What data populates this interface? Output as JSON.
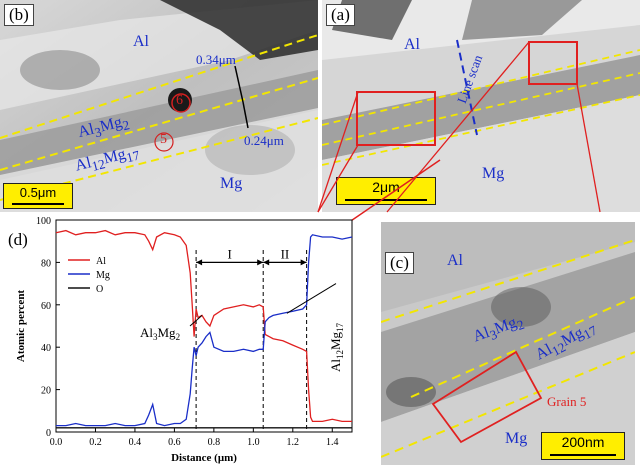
{
  "panel_b": {
    "label": "(b)",
    "phase_al": "Al",
    "phase_al3mg2_main": "Al",
    "phase_al3mg2_sub1": "3",
    "phase_al3mg2_mid": "Mg",
    "phase_al3mg2_sub2": "2",
    "phase_al12mg17_main": "Al",
    "phase_al12mg17_sub1": "12",
    "phase_al12mg17_mid": "Mg",
    "phase_al12mg17_sub2": "17",
    "phase_mg": "Mg",
    "measure_top": "0.34μm",
    "measure_bottom": "0.24μm",
    "grain_6": "6",
    "grain_5": "5",
    "scale": "0.5μm",
    "colors": {
      "dashed": "#f2e600",
      "label": "#1a2ec8",
      "circle": "#d42020"
    }
  },
  "panel_a": {
    "label": "(a)",
    "phase_al": "Al",
    "line_scan": "Line scan",
    "phase_mg": "Mg",
    "scale": "2μm",
    "colors": {
      "box": "#e02020",
      "scan": "#1a2ec8"
    }
  },
  "panel_c": {
    "label": "(c)",
    "phase_al": "Al",
    "phase_al3mg2_main": "Al",
    "phase_al3mg2_sub1": "3",
    "phase_al3mg2_mid": "Mg",
    "phase_al3mg2_sub2": "2",
    "phase_al12mg17_main": "Al",
    "phase_al12mg17_sub1": "12",
    "phase_al12mg17_mid": "Mg",
    "phase_al12mg17_sub2": "17",
    "phase_mg": "Mg",
    "grain_label": "Grain 5",
    "scale": "200nm"
  },
  "chart_data": {
    "panel_label": "(d)",
    "type": "line",
    "xlabel": "Distance (μm)",
    "ylabel": "Atomic percent",
    "xlim": [
      0.0,
      1.5
    ],
    "ylim": [
      0,
      100
    ],
    "xticks": [
      0.0,
      0.2,
      0.4,
      0.6,
      0.8,
      1.0,
      1.2,
      1.4
    ],
    "xtick_labels": [
      "0.0",
      "0.2",
      "0.4",
      "0.6",
      "0.8",
      "1.0",
      "1.2",
      "1.4"
    ],
    "yticks": [
      0,
      20,
      40,
      60,
      80,
      100
    ],
    "ytick_labels": [
      "0",
      "20",
      "40",
      "60",
      "80",
      "100"
    ],
    "legend": [
      "Al",
      "Mg",
      "O"
    ],
    "legend_position": "upper-left",
    "region_I": "I",
    "region_II": "II",
    "boundaries_x": [
      0.71,
      1.05,
      1.27
    ],
    "annotation_al3mg2": {
      "main": "Al",
      "sub1": "3",
      "mid": "Mg",
      "sub2": "2"
    },
    "annotation_al12mg17": {
      "main": "Al",
      "sub1": "12",
      "mid": "Mg",
      "sub2": "17"
    },
    "series": [
      {
        "name": "Al",
        "color": "#e02020",
        "x": [
          0.0,
          0.05,
          0.1,
          0.15,
          0.2,
          0.25,
          0.3,
          0.35,
          0.4,
          0.45,
          0.47,
          0.49,
          0.51,
          0.55,
          0.6,
          0.63,
          0.66,
          0.68,
          0.69,
          0.7,
          0.71,
          0.72,
          0.74,
          0.76,
          0.78,
          0.8,
          0.85,
          0.9,
          0.95,
          1.0,
          1.03,
          1.05,
          1.06,
          1.08,
          1.1,
          1.15,
          1.2,
          1.25,
          1.27,
          1.28,
          1.29,
          1.3,
          1.35,
          1.4,
          1.45,
          1.5
        ],
        "y": [
          94,
          95,
          93,
          94,
          94,
          95,
          93,
          94,
          94,
          93,
          90,
          86,
          92,
          94,
          93,
          92,
          88,
          75,
          60,
          45,
          58,
          54,
          55,
          52,
          50,
          55,
          58,
          59,
          60,
          59,
          60,
          59,
          46,
          45,
          44,
          43,
          41,
          39,
          38,
          20,
          7,
          5,
          5,
          6,
          5,
          5
        ]
      },
      {
        "name": "Mg",
        "color": "#1a2ec8",
        "x": [
          0.0,
          0.05,
          0.1,
          0.15,
          0.2,
          0.25,
          0.3,
          0.35,
          0.4,
          0.45,
          0.47,
          0.49,
          0.51,
          0.55,
          0.6,
          0.63,
          0.66,
          0.68,
          0.69,
          0.7,
          0.71,
          0.72,
          0.74,
          0.76,
          0.78,
          0.8,
          0.85,
          0.9,
          0.95,
          1.0,
          1.03,
          1.05,
          1.06,
          1.08,
          1.1,
          1.15,
          1.2,
          1.25,
          1.27,
          1.28,
          1.29,
          1.3,
          1.35,
          1.4,
          1.45,
          1.5
        ],
        "y": [
          3,
          3,
          4,
          3,
          3,
          3,
          4,
          3,
          3,
          4,
          8,
          13,
          4,
          3,
          4,
          4,
          6,
          18,
          30,
          40,
          36,
          40,
          42,
          45,
          47,
          40,
          38,
          38,
          39,
          38,
          39,
          39,
          52,
          54,
          55,
          56,
          57,
          58,
          60,
          80,
          92,
          93,
          92,
          92,
          91,
          92
        ]
      },
      {
        "name": "O",
        "color": "#111111",
        "x": [
          0.0,
          0.1,
          0.2,
          0.3,
          0.4,
          0.5,
          0.6,
          0.7,
          0.8,
          0.9,
          1.0,
          1.1,
          1.2,
          1.3,
          1.4,
          1.5
        ],
        "y": [
          2,
          2,
          2,
          2,
          2,
          2,
          2,
          2,
          2,
          2,
          2,
          2,
          2,
          2,
          2,
          2
        ]
      }
    ]
  }
}
